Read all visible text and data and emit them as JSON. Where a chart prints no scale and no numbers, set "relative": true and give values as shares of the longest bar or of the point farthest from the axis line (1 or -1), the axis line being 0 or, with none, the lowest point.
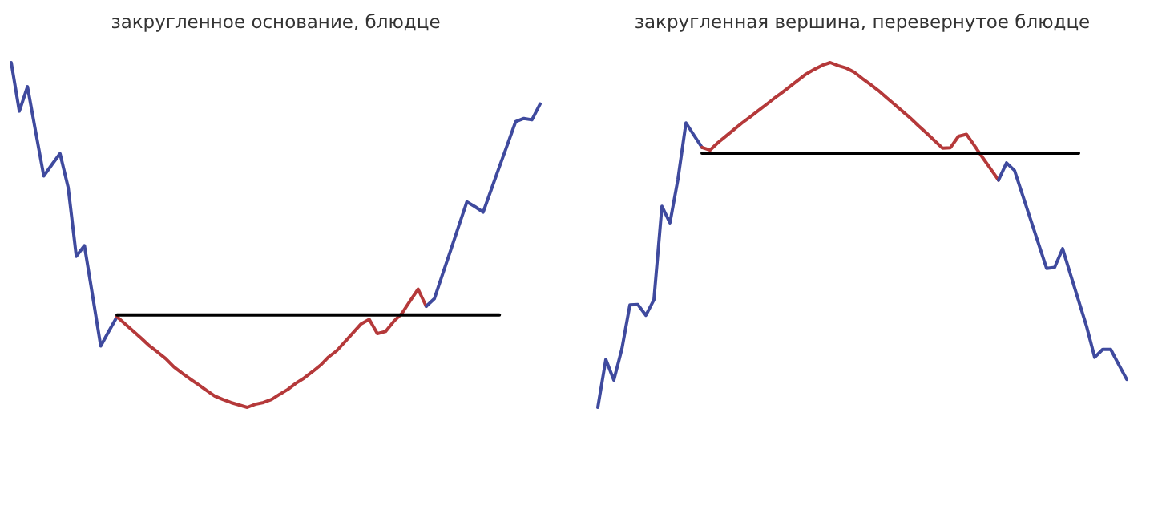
{
  "chart_data": [
    {
      "type": "line",
      "title": "закругленное основание, блюдце",
      "relative": true,
      "marker": "none",
      "line_style": "solid",
      "categories": [
        null,
        null,
        null,
        null,
        null,
        null,
        null,
        null,
        null,
        null,
        null,
        null,
        null,
        null,
        null,
        null,
        null,
        null,
        null,
        null,
        null,
        null,
        null,
        null,
        null,
        null,
        null,
        null,
        null,
        null,
        null,
        null,
        null,
        null,
        null,
        null,
        null,
        null,
        null,
        null,
        null,
        null,
        null,
        null,
        null,
        null,
        null,
        null,
        null,
        null,
        null,
        null,
        null,
        null,
        null,
        null,
        null,
        null,
        null,
        null,
        null,
        null,
        null,
        null,
        null,
        null
      ],
      "series": [
        {
          "color": "#3f4a9e",
          "values": [
            1,
            0.859,
            0.93,
            0.8,
            0.671,
            0.704,
            0.736,
            0.638,
            0.438,
            0.469,
            0.324,
            0.178,
            0.221,
            0.263,
            null,
            null,
            null,
            null,
            null,
            null,
            null,
            null,
            null,
            null,
            null,
            null,
            null,
            null,
            null,
            null,
            null,
            null,
            null,
            null,
            null,
            null,
            null,
            null,
            null,
            null,
            null,
            null,
            null,
            null,
            null,
            null,
            null,
            null,
            null,
            null,
            null,
            null,
            null,
            null,
            null,
            null,
            null,
            null,
            null,
            null,
            null,
            null,
            null,
            null,
            null,
            null
          ]
        },
        {
          "color": "#b5393a",
          "values": [
            null,
            null,
            null,
            null,
            null,
            null,
            null,
            null,
            null,
            null,
            null,
            null,
            null,
            0.263,
            0.242,
            0.221,
            0.2,
            0.178,
            0.16,
            0.141,
            0.117,
            0.099,
            0.082,
            0.066,
            0.049,
            0.033,
            0.023,
            0.014,
            0.007,
            0,
            0.009,
            0.014,
            0.023,
            0.038,
            0.052,
            0.07,
            0.085,
            0.103,
            0.122,
            0.146,
            0.164,
            0.19,
            0.216,
            0.242,
            0.255,
            0.214,
            0.22,
            0.249,
            0.272,
            0.308,
            0.343,
            0.293,
            null,
            null,
            null,
            null,
            null,
            null,
            null,
            null,
            null,
            null,
            null,
            null,
            null,
            null
          ]
        },
        {
          "color": "#3f4a9e",
          "values": [
            null,
            null,
            null,
            null,
            null,
            null,
            null,
            null,
            null,
            null,
            null,
            null,
            null,
            null,
            null,
            null,
            null,
            null,
            null,
            null,
            null,
            null,
            null,
            null,
            null,
            null,
            null,
            null,
            null,
            null,
            null,
            null,
            null,
            null,
            null,
            null,
            null,
            null,
            null,
            null,
            null,
            null,
            null,
            null,
            null,
            null,
            null,
            null,
            null,
            null,
            null,
            0.293,
            0.315,
            0.385,
            0.455,
            0.526,
            0.596,
            0.582,
            0.566,
            0.632,
            0.698,
            0.763,
            0.829,
            0.838,
            0.834,
            0.88
          ]
        },
        {
          "color": "#000000",
          "values": [
            null,
            null,
            null,
            null,
            null,
            null,
            null,
            null,
            null,
            null,
            null,
            null,
            null,
            0.268,
            0.268,
            0.268,
            0.268,
            0.268,
            0.268,
            0.268,
            0.268,
            0.268,
            0.268,
            0.268,
            0.268,
            0.268,
            0.268,
            0.268,
            0.268,
            0.268,
            0.268,
            0.268,
            0.268,
            0.268,
            0.268,
            0.268,
            0.268,
            0.268,
            0.268,
            0.268,
            0.268,
            0.268,
            0.268,
            0.268,
            0.268,
            0.268,
            0.268,
            0.268,
            0.268,
            0.268,
            0.268,
            0.268,
            0.268,
            0.268,
            0.268,
            0.268,
            0.268,
            0.268,
            0.268,
            0.268,
            0.268,
            null,
            null,
            null,
            null,
            null
          ]
        }
      ]
    },
    {
      "type": "line",
      "title": "закругленная вершина, перевернутое блюдце",
      "relative": true,
      "marker": "none",
      "line_style": "solid",
      "categories": [
        null,
        null,
        null,
        null,
        null,
        null,
        null,
        null,
        null,
        null,
        null,
        null,
        null,
        null,
        null,
        null,
        null,
        null,
        null,
        null,
        null,
        null,
        null,
        null,
        null,
        null,
        null,
        null,
        null,
        null,
        null,
        null,
        null,
        null,
        null,
        null,
        null,
        null,
        null,
        null,
        null,
        null,
        null,
        null,
        null,
        null,
        null,
        null,
        null,
        null,
        null,
        null,
        null,
        null,
        null,
        null,
        null,
        null,
        null,
        null,
        null,
        null,
        null,
        null,
        null,
        null,
        null
      ],
      "series": [
        {
          "color": "#3f4a9e",
          "values": [
            0,
            0.139,
            0.079,
            0.169,
            0.297,
            0.298,
            0.267,
            0.312,
            0.583,
            0.535,
            0.662,
            0.825,
            0.789,
            0.754,
            null,
            null,
            null,
            null,
            null,
            null,
            null,
            null,
            null,
            null,
            null,
            null,
            null,
            null,
            null,
            null,
            null,
            null,
            null,
            null,
            null,
            null,
            null,
            null,
            null,
            null,
            null,
            null,
            null,
            null,
            null,
            null,
            null,
            null,
            null,
            null,
            null,
            null,
            null,
            null,
            null,
            null,
            null,
            null,
            null,
            null,
            null,
            null,
            null,
            null,
            null,
            null,
            null
          ]
        },
        {
          "color": "#b5393a",
          "values": [
            null,
            null,
            null,
            null,
            null,
            null,
            null,
            null,
            null,
            null,
            null,
            null,
            null,
            0.754,
            0.746,
            0.768,
            0.787,
            0.806,
            0.825,
            0.842,
            0.86,
            0.878,
            0.896,
            0.913,
            0.931,
            0.949,
            0.967,
            0.98,
            0.992,
            1.0,
            0.991,
            0.984,
            0.972,
            0.954,
            0.937,
            0.919,
            0.899,
            0.879,
            0.859,
            0.839,
            0.817,
            0.796,
            0.774,
            0.752,
            0.753,
            0.786,
            0.792,
            0.759,
            0.725,
            0.692,
            0.659,
            null,
            null,
            null,
            null,
            null,
            null,
            null,
            null,
            null,
            null,
            null,
            null,
            null,
            null,
            null,
            null
          ]
        },
        {
          "color": "#3f4a9e",
          "values": [
            null,
            null,
            null,
            null,
            null,
            null,
            null,
            null,
            null,
            null,
            null,
            null,
            null,
            null,
            null,
            null,
            null,
            null,
            null,
            null,
            null,
            null,
            null,
            null,
            null,
            null,
            null,
            null,
            null,
            null,
            null,
            null,
            null,
            null,
            null,
            null,
            null,
            null,
            null,
            null,
            null,
            null,
            null,
            null,
            null,
            null,
            null,
            null,
            null,
            null,
            0.659,
            0.709,
            0.687,
            0.616,
            0.545,
            0.474,
            0.403,
            0.406,
            0.46,
            0.384,
            0.309,
            0.234,
            0.145,
            0.168,
            0.168,
            0.124,
            0.081
          ]
        },
        {
          "color": "#000000",
          "values": [
            null,
            null,
            null,
            null,
            null,
            null,
            null,
            null,
            null,
            null,
            null,
            null,
            null,
            0.737,
            0.737,
            0.737,
            0.737,
            0.737,
            0.737,
            0.737,
            0.737,
            0.737,
            0.737,
            0.737,
            0.737,
            0.737,
            0.737,
            0.737,
            0.737,
            0.737,
            0.737,
            0.737,
            0.737,
            0.737,
            0.737,
            0.737,
            0.737,
            0.737,
            0.737,
            0.737,
            0.737,
            0.737,
            0.737,
            0.737,
            0.737,
            0.737,
            0.737,
            0.737,
            0.737,
            0.737,
            0.737,
            0.737,
            0.737,
            0.737,
            0.737,
            0.737,
            0.737,
            0.737,
            0.737,
            0.737,
            0.737,
            null,
            null,
            null,
            null,
            null,
            null
          ]
        }
      ]
    }
  ]
}
